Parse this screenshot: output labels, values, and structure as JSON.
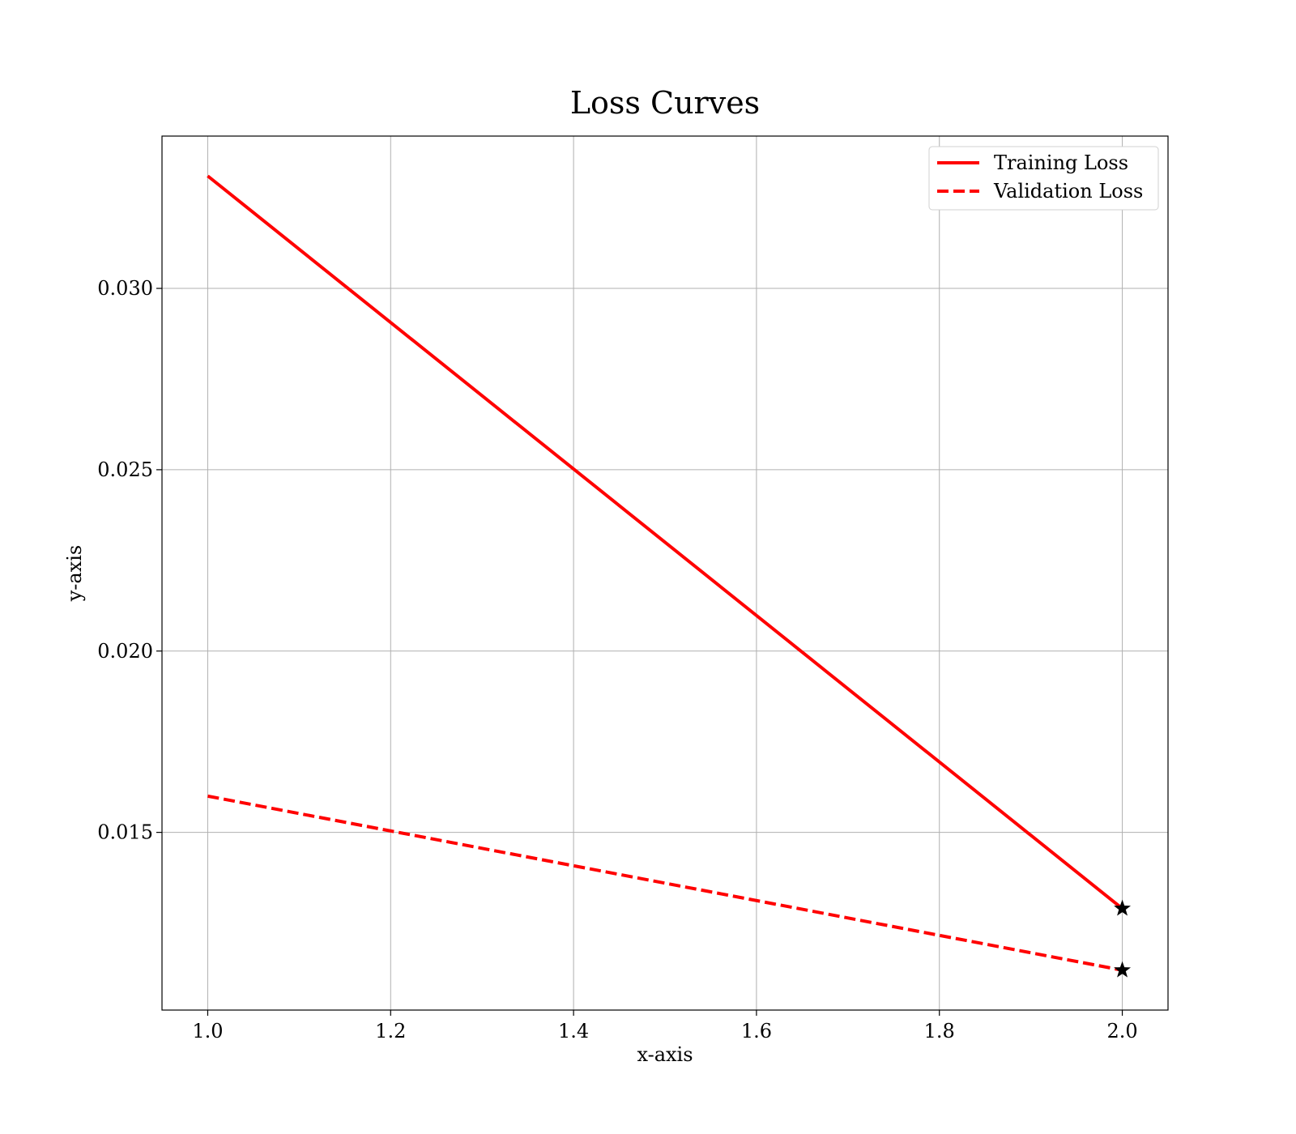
{
  "chart_data": {
    "type": "line",
    "title": "Loss Curves",
    "xlabel": "x-axis",
    "ylabel": "y-axis",
    "xlim": [
      0.95,
      2.05
    ],
    "ylim": [
      0.0101,
      0.0342
    ],
    "xticks": [
      1.0,
      1.2,
      1.4,
      1.6,
      1.8,
      2.0
    ],
    "xtick_labels": [
      "1.0",
      "1.2",
      "1.4",
      "1.6",
      "1.8",
      "2.0"
    ],
    "yticks": [
      0.015,
      0.02,
      0.025,
      0.03
    ],
    "ytick_labels": [
      "0.015",
      "0.020",
      "0.025",
      "0.030"
    ],
    "grid": true,
    "legend_position": "top-right",
    "series": [
      {
        "name": "Training Loss",
        "x": [
          1.0,
          2.0
        ],
        "y": [
          0.0331,
          0.0129
        ],
        "color": "#ff0000",
        "style": "solid",
        "end_marker": "star"
      },
      {
        "name": "Validation Loss",
        "x": [
          1.0,
          2.0
        ],
        "y": [
          0.016,
          0.0112
        ],
        "color": "#ff0000",
        "style": "dashed",
        "end_marker": "star"
      }
    ]
  }
}
